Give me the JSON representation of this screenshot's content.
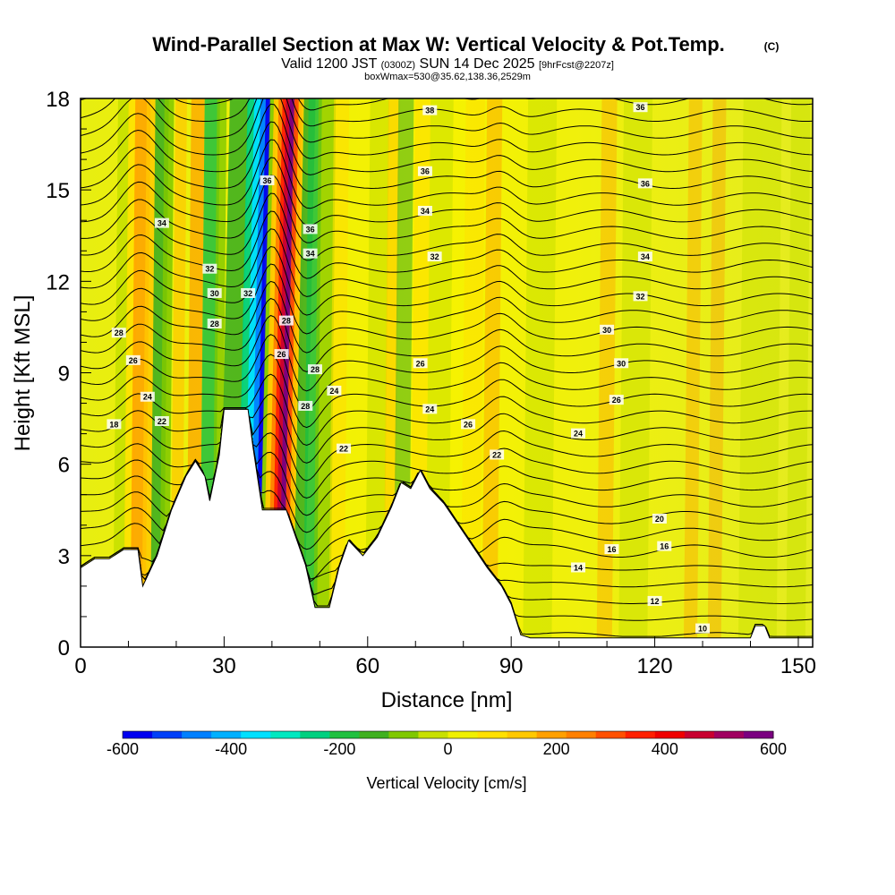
{
  "chart_data": {
    "type": "contour",
    "title": "Wind-Parallel Section at Max W: Vertical Velocity & Pot.Temp.",
    "title_suffix": "(C)",
    "subtitle_prefix": "Valid 1200 JST",
    "subtitle_zulu": "(0300Z)",
    "subtitle_date": "SUN 14 Dec 2025",
    "subtitle_forecast": "[9hrFcst@2207z]",
    "subtitle2": "boxWmax=530@35.62,138.36,2529m",
    "xlabel": "Distance [nm]",
    "ylabel": "Height [Kft MSL]",
    "xlim": [
      0,
      153
    ],
    "ylim": [
      0,
      18
    ],
    "x_ticks": [
      0,
      30,
      60,
      90,
      120,
      150
    ],
    "y_ticks": [
      0,
      3,
      6,
      9,
      12,
      15,
      18
    ],
    "colorbar": {
      "label": "Vertical Velocity [cm/s]",
      "range": [
        -600,
        600
      ],
      "tick_values": [
        -600,
        -400,
        -200,
        0,
        200,
        400,
        600
      ],
      "colors": [
        "#0000f0",
        "#0040f8",
        "#0080ff",
        "#00b0ff",
        "#00e0ff",
        "#00e8c0",
        "#00d080",
        "#20c040",
        "#40b020",
        "#80c800",
        "#c8e000",
        "#f0f000",
        "#ffe000",
        "#ffc800",
        "#ffa000",
        "#ff8000",
        "#ff5000",
        "#ff2000",
        "#f00000",
        "#c80030",
        "#a00060",
        "#7a0080"
      ]
    },
    "theta_contour_labels": [
      "10",
      "12",
      "14",
      "16",
      "16",
      "18",
      "20",
      "22",
      "22",
      "22",
      "24",
      "24",
      "24",
      "24",
      "26",
      "26",
      "26",
      "26",
      "26",
      "28",
      "28",
      "28",
      "28",
      "28",
      "30",
      "30",
      "30",
      "32",
      "32",
      "32",
      "32",
      "34",
      "34",
      "34",
      "34",
      "36",
      "36",
      "36",
      "36",
      "36",
      "38"
    ],
    "terrain_profile": [
      [
        0,
        2.6
      ],
      [
        3,
        2.9
      ],
      [
        6,
        2.9
      ],
      [
        9,
        3.2
      ],
      [
        12,
        3.2
      ],
      [
        13,
        2.0
      ],
      [
        16,
        3.0
      ],
      [
        19,
        4.5
      ],
      [
        22,
        5.6
      ],
      [
        24,
        6.1
      ],
      [
        26,
        5.6
      ],
      [
        27,
        4.8
      ],
      [
        29,
        6.3
      ],
      [
        30,
        7.8
      ],
      [
        35,
        7.8
      ],
      [
        36,
        6.6
      ],
      [
        38,
        4.5
      ],
      [
        43,
        4.5
      ],
      [
        45,
        3.6
      ],
      [
        47,
        2.7
      ],
      [
        49,
        1.3
      ],
      [
        52,
        1.3
      ],
      [
        54,
        2.6
      ],
      [
        56,
        3.5
      ],
      [
        59,
        3.0
      ],
      [
        62,
        3.6
      ],
      [
        65,
        4.6
      ],
      [
        67,
        5.4
      ],
      [
        69,
        5.2
      ],
      [
        71,
        5.8
      ],
      [
        73,
        5.2
      ],
      [
        76,
        4.7
      ],
      [
        79,
        4.0
      ],
      [
        82,
        3.3
      ],
      [
        85,
        2.6
      ],
      [
        88,
        2.0
      ],
      [
        90,
        1.4
      ],
      [
        92,
        0.4
      ],
      [
        94,
        0.3
      ],
      [
        140,
        0.3
      ],
      [
        141,
        0.7
      ],
      [
        143,
        0.7
      ],
      [
        144,
        0.3
      ],
      [
        153,
        0.3
      ]
    ]
  }
}
